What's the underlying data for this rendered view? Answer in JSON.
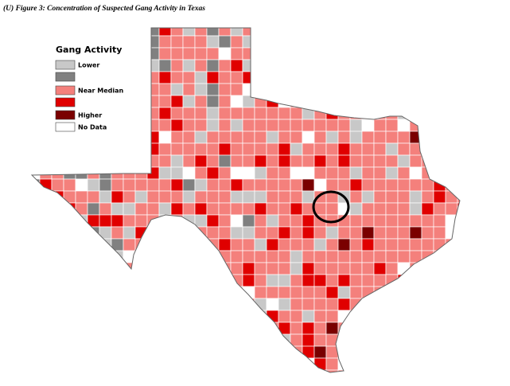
{
  "header": {
    "title": "(U)  Figure 3: Concentration of Suspected Gang Activity in Texas"
  },
  "legend": {
    "title": "Gang Activity",
    "labels": [
      "Lower",
      "Near Median",
      "Higher",
      "No Data"
    ]
  }
}
